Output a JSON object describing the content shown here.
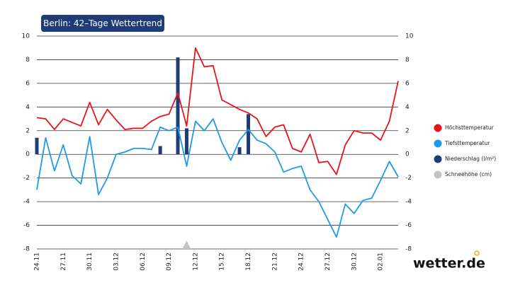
{
  "chart_data": {
    "type": "combo",
    "title": "Berlin: 42–Tage Wettertrend",
    "brand": "wetter.de",
    "categories": [
      "24.11",
      null,
      null,
      "27.11",
      null,
      null,
      "30.11",
      null,
      null,
      "03.12",
      null,
      null,
      "06.12",
      null,
      null,
      "09.12",
      null,
      null,
      "12.12",
      null,
      null,
      "15.12",
      null,
      null,
      "18.12",
      null,
      null,
      "21.12",
      null,
      null,
      "24.12",
      null,
      null,
      "27.12",
      null,
      null,
      "30.12",
      null,
      null,
      "02.01",
      null,
      null
    ],
    "ylim": [
      -8,
      10
    ],
    "yticks": [
      -8,
      -6,
      -4,
      -2,
      0,
      2,
      4,
      6,
      8,
      10
    ],
    "grid": true,
    "legend": "right",
    "series": [
      {
        "name": "Höchsttemperatur",
        "type": "line",
        "color": "#e8141a",
        "values": [
          3.1,
          3.0,
          2.1,
          3.0,
          2.7,
          2.4,
          4.4,
          2.5,
          3.8,
          2.9,
          2.1,
          2.2,
          2.2,
          2.8,
          3.2,
          3.4,
          5.2,
          2.4,
          9.0,
          7.4,
          7.5,
          4.6,
          4.2,
          3.8,
          3.5,
          3.0,
          1.5,
          2.3,
          2.5,
          0.5,
          0.2,
          1.7,
          -0.7,
          -0.6,
          -1.7,
          0.8,
          2.0,
          1.8,
          1.8,
          1.2,
          2.8,
          6.2
        ]
      },
      {
        "name": "Tiefsttemperatur",
        "type": "line",
        "color": "#1e9be8",
        "values": [
          -3.0,
          1.4,
          -1.4,
          0.8,
          -1.8,
          -2.5,
          1.5,
          -3.4,
          -2.0,
          0.0,
          0.2,
          0.5,
          0.5,
          0.4,
          2.3,
          2.0,
          2.3,
          -1.0,
          2.8,
          2.0,
          3.0,
          1.0,
          -0.5,
          1.2,
          2.1,
          1.2,
          0.9,
          0.2,
          -1.5,
          -1.2,
          -1.0,
          -3.0,
          -4.0,
          -5.5,
          -7.0,
          -4.2,
          -5.0,
          -3.9,
          -3.7,
          -2.2,
          -0.6,
          -1.9
        ]
      },
      {
        "name": "Niederschlag (l/m²)",
        "type": "bar",
        "color": "#1f3c78",
        "values": [
          1.4,
          0,
          0,
          0,
          0,
          0,
          0,
          0,
          0,
          0,
          0,
          0,
          0,
          0,
          0.7,
          0,
          8.2,
          2.2,
          0,
          0,
          0,
          0,
          0,
          0.6,
          3.4,
          0,
          0,
          0,
          0,
          0,
          0,
          0,
          0,
          0,
          0,
          0,
          0,
          0,
          0,
          0,
          0,
          0
        ]
      },
      {
        "name": "Schneehöhe (cm)",
        "type": "area",
        "color": "#c4c4c4",
        "values": [
          0,
          0,
          0,
          0,
          0,
          0,
          0,
          0,
          0,
          0,
          0,
          0,
          0,
          0,
          0,
          0,
          0,
          0.7,
          0,
          0,
          0,
          0,
          0,
          0,
          0,
          0,
          0,
          0,
          0,
          0,
          0,
          0,
          0,
          0,
          0,
          0,
          0,
          0,
          0,
          0,
          0,
          0
        ]
      }
    ]
  }
}
